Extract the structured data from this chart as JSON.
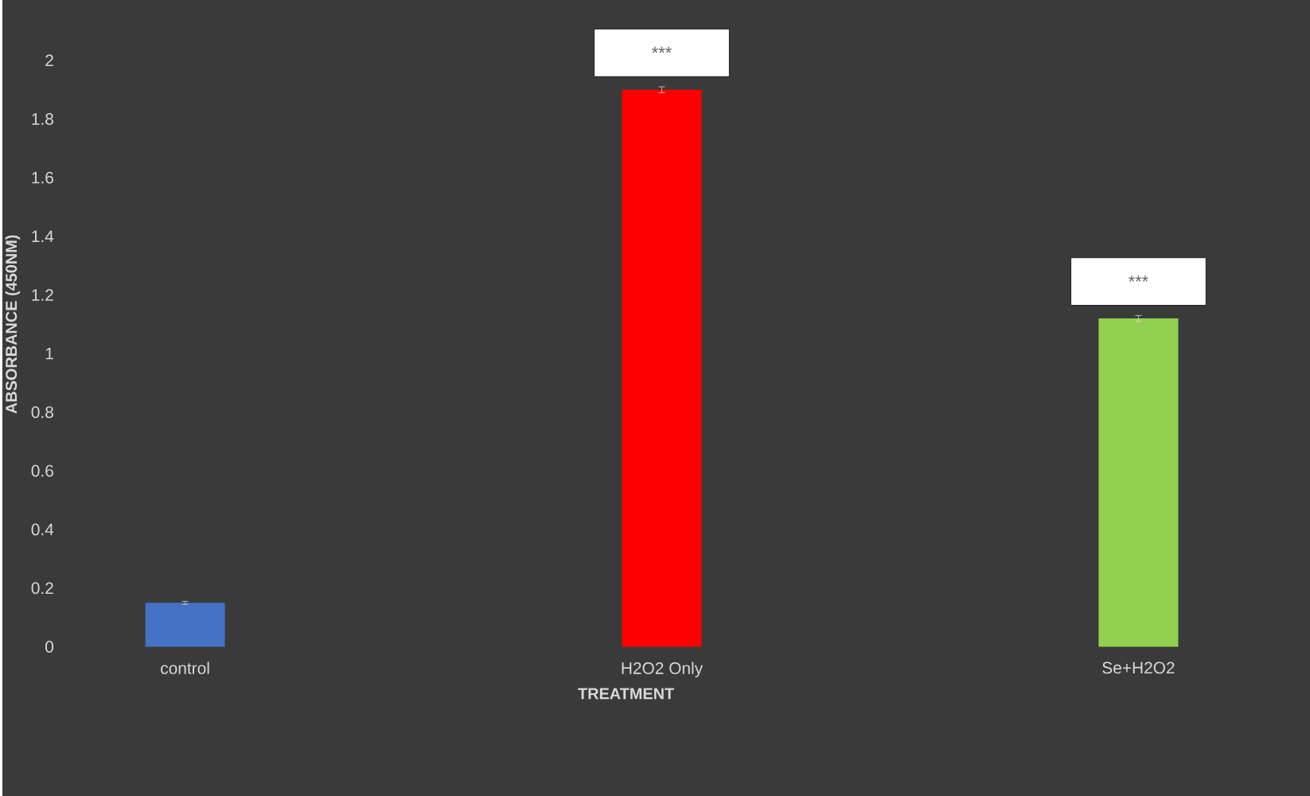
{
  "chart_data": {
    "type": "bar",
    "xlabel": "TREATMENT",
    "ylabel": "ABSORBANCE (450NM)",
    "categories": [
      "control",
      "H2O2 Only",
      "Se+H2O2"
    ],
    "values": [
      0.15,
      1.9,
      1.12
    ],
    "errors": [
      0.005,
      0.01,
      0.01
    ],
    "colors": [
      "#4472c4",
      "#ff0000",
      "#92d050"
    ],
    "ylim": [
      0,
      2.2
    ],
    "yticks": [
      0,
      0.2,
      0.4,
      0.6,
      0.8,
      1,
      1.2,
      1.4,
      1.6,
      1.8,
      2
    ],
    "annotations": [
      {
        "text": "***",
        "x": "H2O2 Only",
        "y": 1.9
      },
      {
        "text": "***",
        "x": "Se+H2O2",
        "y": 1.12
      }
    ]
  }
}
